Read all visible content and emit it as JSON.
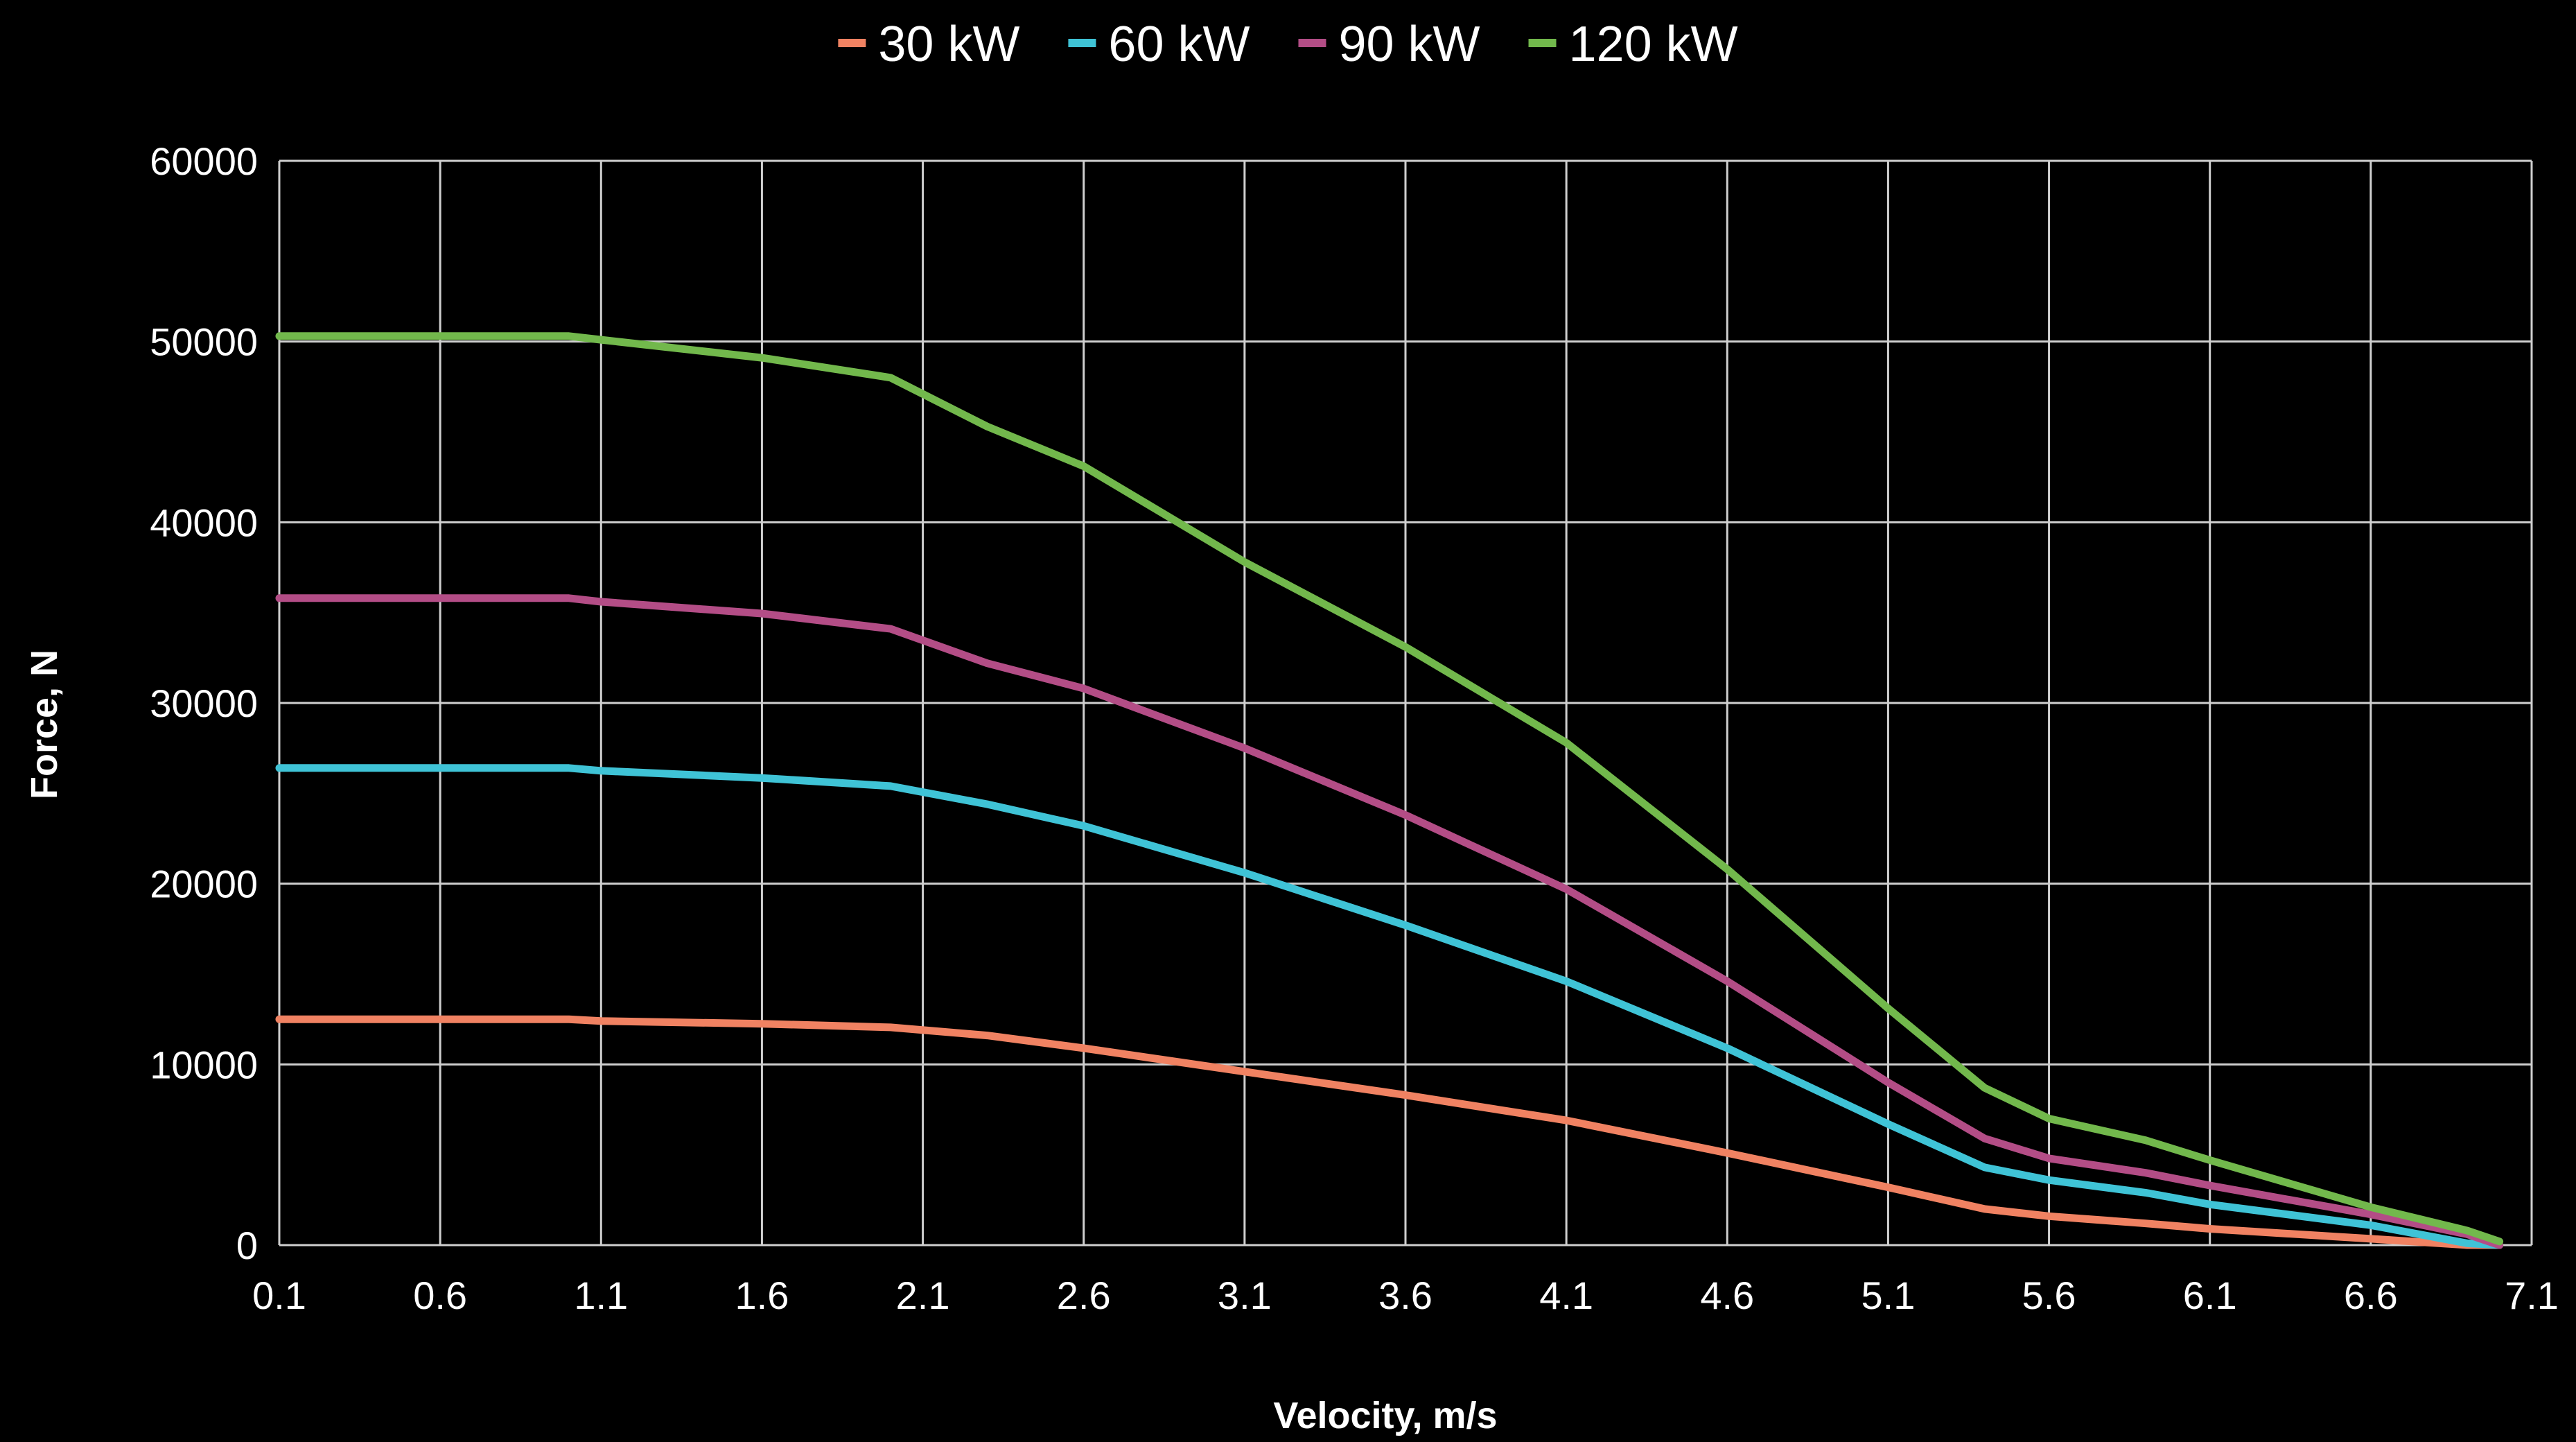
{
  "chart_data": {
    "type": "line",
    "title": "",
    "xlabel": "Velocity, m/s",
    "ylabel": "Force, N",
    "xlim": [
      0.1,
      7.1
    ],
    "ylim": [
      0,
      60000
    ],
    "x_ticks": [
      "0.1",
      "0.6",
      "1.1",
      "1.6",
      "2.1",
      "2.6",
      "3.1",
      "3.6",
      "4.1",
      "4.6",
      "5.1",
      "5.6",
      "6.1",
      "6.6",
      "7.1"
    ],
    "y_ticks": [
      "0",
      "10000",
      "20000",
      "30000",
      "40000",
      "50000",
      "60000"
    ],
    "grid": true,
    "legend_position": "top",
    "x": [
      0.1,
      0.6,
      1.0,
      1.1,
      1.6,
      2.0,
      2.3,
      2.6,
      3.1,
      3.6,
      4.1,
      4.6,
      5.1,
      5.4,
      5.6,
      5.9,
      6.1,
      6.6,
      6.9,
      7.0
    ],
    "series": [
      {
        "name": "30 kW",
        "color": "#f08262",
        "values": [
          12500,
          12500,
          12500,
          12400,
          12250,
          12050,
          11600,
          10900,
          9600,
          8300,
          6900,
          5100,
          3200,
          2000,
          1600,
          1200,
          900,
          350,
          0,
          0
        ]
      },
      {
        "name": "60 kW",
        "color": "#3fc3d6",
        "values": [
          26400,
          26400,
          26400,
          26250,
          25850,
          25400,
          24400,
          23200,
          20600,
          17700,
          14600,
          10900,
          6700,
          4300,
          3600,
          2900,
          2250,
          1100,
          100,
          0
        ]
      },
      {
        "name": "90 kW",
        "color": "#b34d86",
        "values": [
          35800,
          35800,
          35800,
          35600,
          34950,
          34100,
          32200,
          30800,
          27500,
          23800,
          19700,
          14600,
          9000,
          5900,
          4800,
          4000,
          3300,
          1700,
          600,
          0
        ]
      },
      {
        "name": "120 kW",
        "color": "#72b84c",
        "values": [
          50300,
          50300,
          50300,
          50100,
          49100,
          48000,
          45300,
          43100,
          37800,
          33100,
          27800,
          20800,
          13100,
          8700,
          7000,
          5800,
          4700,
          2100,
          800,
          200
        ]
      }
    ]
  }
}
